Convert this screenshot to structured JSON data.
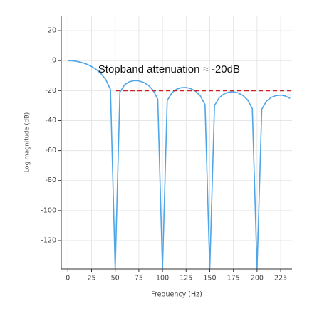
{
  "chart_data": {
    "type": "line",
    "x_label": "Frequency (Hz)",
    "y_label": "Log magnitude (dB)",
    "x": [
      0,
      5,
      10,
      15,
      20,
      25,
      30,
      35,
      40,
      45,
      50,
      55,
      60,
      65,
      70,
      75,
      80,
      85,
      90,
      95,
      100,
      105,
      110,
      115,
      120,
      125,
      130,
      135,
      140,
      145,
      150,
      155,
      160,
      165,
      170,
      175,
      180,
      185,
      190,
      195,
      200,
      205,
      210,
      215,
      220,
      225,
      230,
      235
    ],
    "series": [
      {
        "color": "#4ea6e8",
        "values": [
          0,
          -0.1,
          -0.6,
          -1.3,
          -2.4,
          -3.9,
          -5.9,
          -8.7,
          -12.6,
          -19.2,
          -139,
          -21.0,
          -16.1,
          -14.1,
          -13.3,
          -13.5,
          -14.5,
          -16.4,
          -19.7,
          -25.7,
          -139,
          -26.6,
          -21.4,
          -19.0,
          -18.0,
          -17.9,
          -18.7,
          -20.4,
          -23.5,
          -29.4,
          -139,
          -30.0,
          -24.7,
          -22.2,
          -21.0,
          -20.8,
          -21.5,
          -23.2,
          -26.2,
          -32.0,
          -139,
          -32.4,
          -27.0,
          -24.5,
          -23.3,
          -23.0,
          -23.6,
          -25.2
        ]
      }
    ],
    "xlim": [
      -7,
      237
    ],
    "ylim": [
      -139,
      30
    ],
    "xticks": [
      0,
      25,
      50,
      75,
      100,
      125,
      150,
      175,
      200,
      225
    ],
    "yticks": [
      20,
      0,
      -20,
      -40,
      -60,
      -80,
      -100,
      -120
    ],
    "grid": true,
    "reference_line": {
      "y": -20,
      "x": [
        51,
        237
      ],
      "color": "#cc2222"
    },
    "annotation": {
      "text": "Stopband attenuation ≈ -20dB",
      "x": 32,
      "y": -6
    }
  }
}
